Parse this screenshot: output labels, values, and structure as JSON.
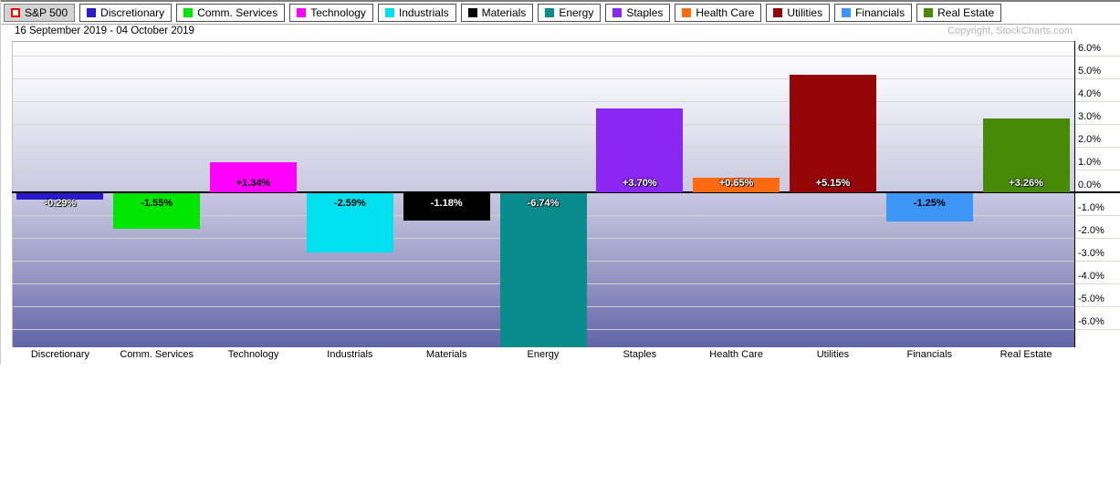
{
  "header": {
    "date_range": "16 September 2019 - 04 October 2019",
    "copyright": "Copyright, StockCharts.com"
  },
  "legend": {
    "sp500": {
      "label": "S&P 500",
      "swatch_fill": "#ffffff",
      "swatch_border": "#ff0000"
    },
    "items": [
      {
        "label": "Discretionary",
        "color": "#2a1bd1"
      },
      {
        "label": "Comm. Services",
        "color": "#00e600"
      },
      {
        "label": "Technology",
        "color": "#ff00ff"
      },
      {
        "label": "Industrials",
        "color": "#00e0ee"
      },
      {
        "label": "Materials",
        "color": "#000000"
      },
      {
        "label": "Energy",
        "color": "#0a8c8c"
      },
      {
        "label": "Staples",
        "color": "#8c26f2"
      },
      {
        "label": "Health Care",
        "color": "#ff6a10"
      },
      {
        "label": "Utilities",
        "color": "#950608"
      },
      {
        "label": "Financials",
        "color": "#3d96f5"
      },
      {
        "label": "Real Estate",
        "color": "#478a0a"
      }
    ]
  },
  "chart_data": {
    "type": "bar",
    "title": "16 September 2019 - 04 October 2019",
    "xlabel": "",
    "ylabel": "",
    "categories": [
      "Discretionary",
      "Comm. Services",
      "Technology",
      "Industrials",
      "Materials",
      "Energy",
      "Staples",
      "Health Care",
      "Utilities",
      "Financials",
      "Real Estate"
    ],
    "values": [
      -0.29,
      -1.55,
      1.34,
      -2.59,
      -1.18,
      -6.74,
      3.7,
      0.65,
      5.15,
      -1.25,
      3.26
    ],
    "value_labels": [
      "-0.29%",
      "-1.55%",
      "+1.34%",
      "-2.59%",
      "-1.18%",
      "-6.74%",
      "+3.70%",
      "+0.65%",
      "+5.15%",
      "-1.25%",
      "+3.26%"
    ],
    "bar_colors": [
      "#2a1bd1",
      "#00e600",
      "#ff00ff",
      "#00e0ee",
      "#000000",
      "#0a8c8c",
      "#8c26f2",
      "#ff6a10",
      "#950608",
      "#3d96f5",
      "#478a0a"
    ],
    "value_label_styles": [
      "light",
      "dark",
      "dark",
      "dark",
      "light",
      "light",
      "light",
      "light",
      "light",
      "dark",
      "light"
    ],
    "yticks": [
      6,
      5,
      4,
      3,
      2,
      1,
      0,
      -1,
      -2,
      -3,
      -4,
      -5,
      -6
    ],
    "ytick_labels": [
      "6.0%",
      "5.0%",
      "4.0%",
      "3.0%",
      "2.0%",
      "1.0%",
      "0.0%",
      "-1.0%",
      "-2.0%",
      "-3.0%",
      "-4.0%",
      "-5.0%",
      "-6.0%"
    ],
    "ylim": [
      -6.76,
      6.64
    ],
    "grid": true,
    "legend_position": "top"
  }
}
